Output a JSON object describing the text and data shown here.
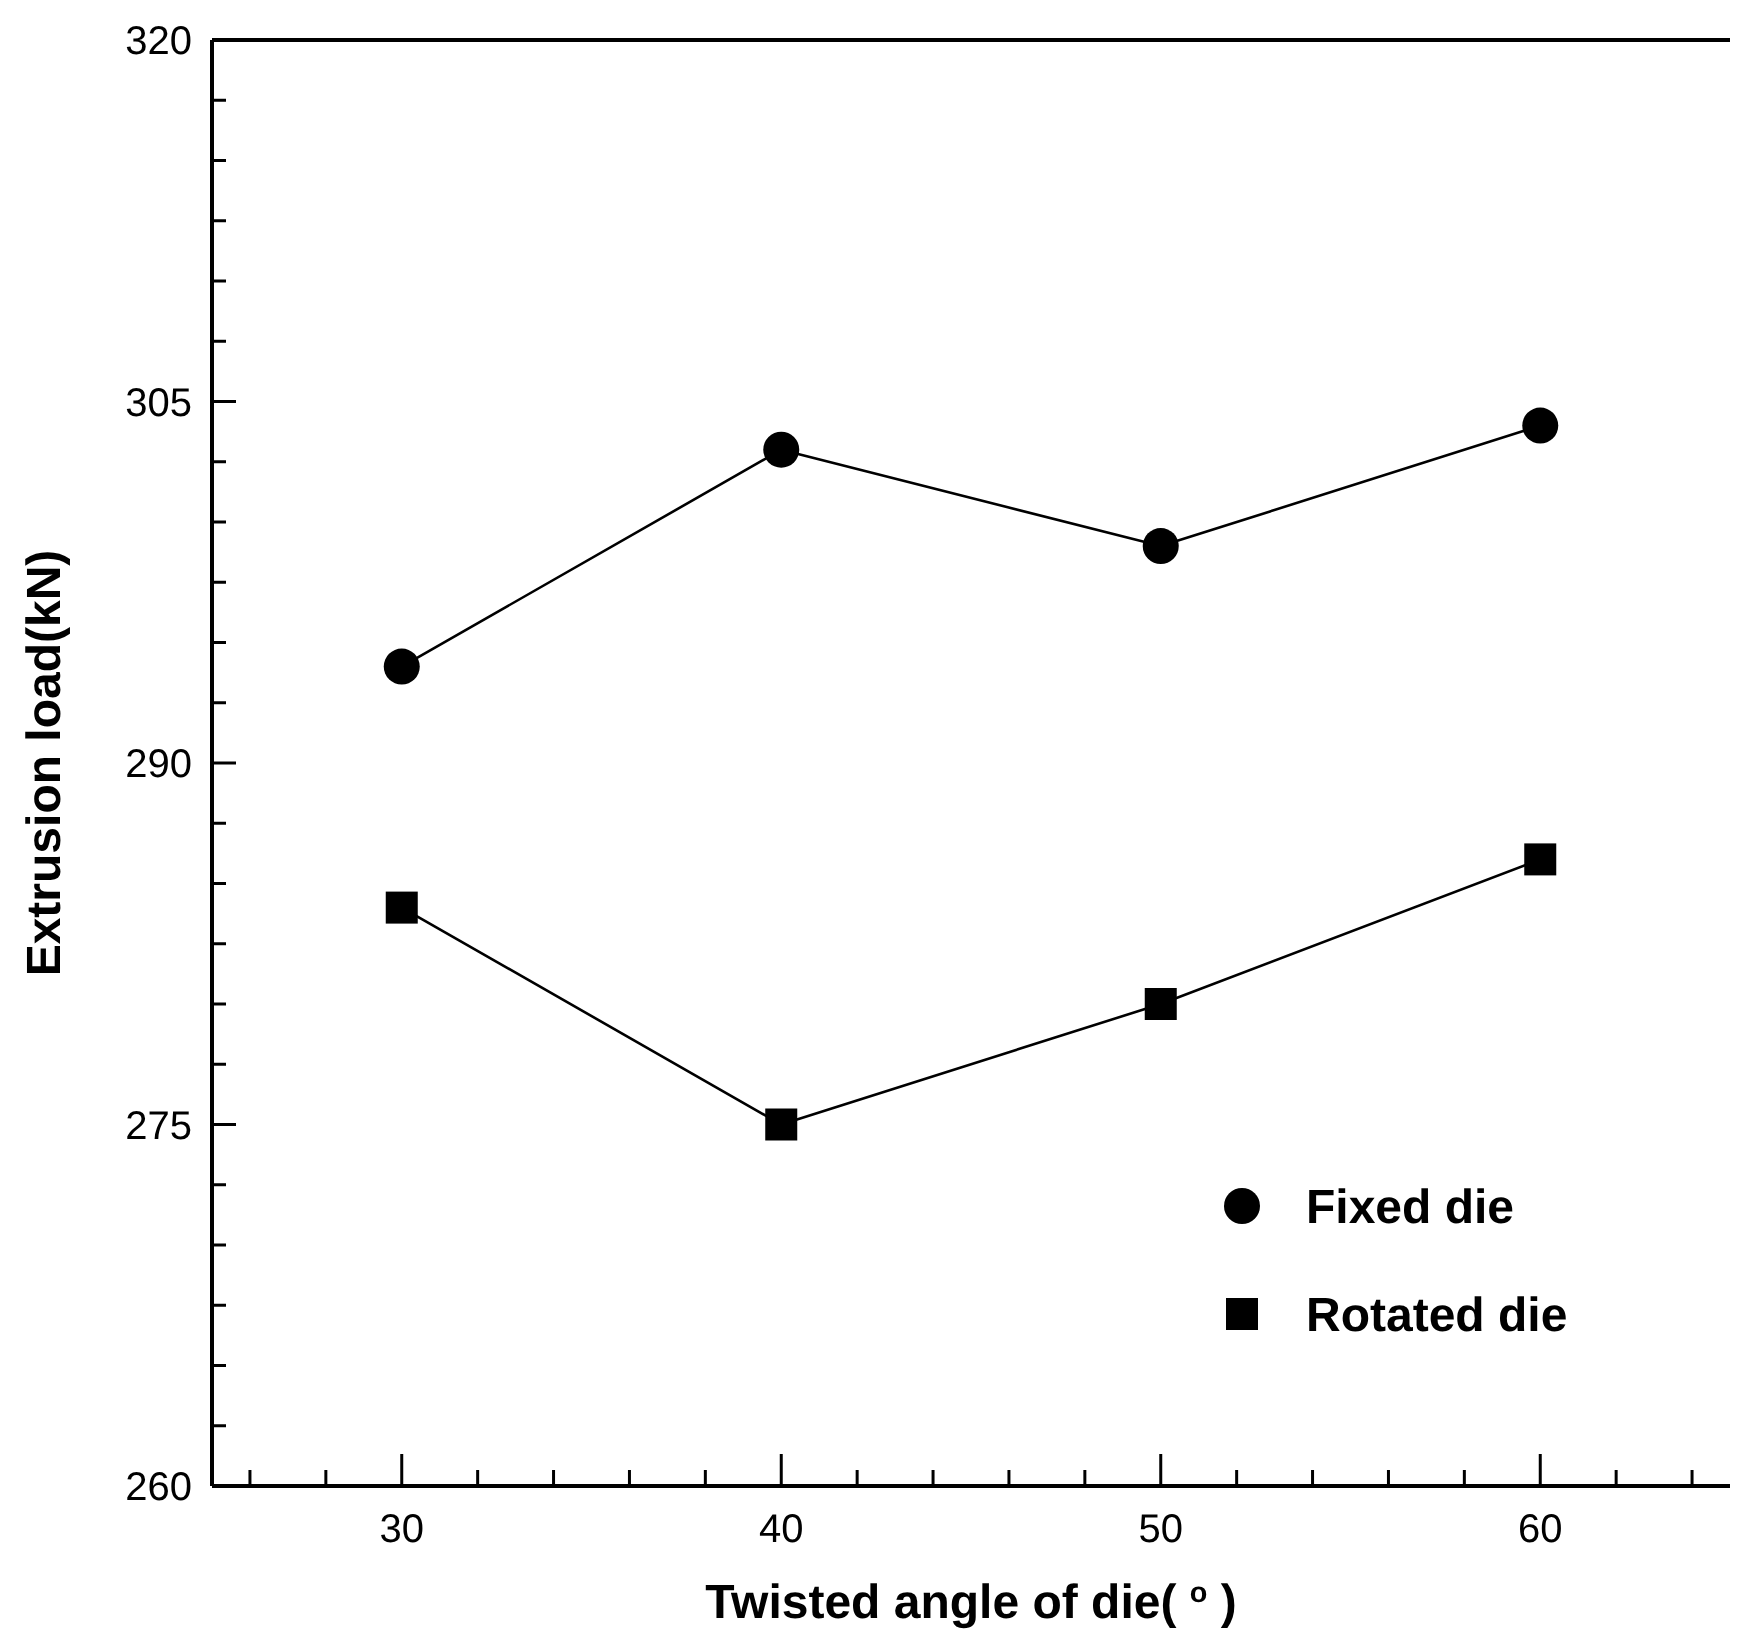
{
  "chart_data": {
    "type": "line",
    "xlabel": "Twisted angle of die( $^{o}$ )",
    "ylabel": "Extrusion load(kN)",
    "x": [
      30,
      40,
      50,
      60
    ],
    "series": [
      {
        "name": "Fixed die",
        "color": "#000000",
        "marker": "circle",
        "values": [
          294,
          303,
          299,
          304
        ]
      },
      {
        "name": "Rotated die",
        "color": "#000000",
        "marker": "square",
        "values": [
          284,
          275,
          280,
          286
        ]
      }
    ],
    "xlim": [
      25,
      65
    ],
    "ylim": [
      260,
      320
    ],
    "xticks": [
      {
        "value": 26,
        "label": null
      },
      {
        "value": 28,
        "label": null
      },
      30,
      {
        "value": 32,
        "label": null
      },
      {
        "value": 34,
        "label": null
      },
      {
        "value": 36,
        "label": null
      },
      {
        "value": 38,
        "label": null
      },
      40,
      {
        "value": 42,
        "label": null
      },
      {
        "value": 44,
        "label": null
      },
      {
        "value": 46,
        "label": null
      },
      {
        "value": 48,
        "label": null
      },
      50,
      {
        "value": 52,
        "label": null
      },
      {
        "value": 54,
        "label": null
      },
      {
        "value": 56,
        "label": null
      },
      {
        "value": 58,
        "label": null
      },
      60,
      {
        "value": 62,
        "label": null
      },
      {
        "value": 64,
        "label": null
      }
    ],
    "yticks": [
      260,
      {
        "value": 262.5,
        "label": null
      },
      {
        "value": 265,
        "label": null
      },
      {
        "value": 267.5,
        "label": null
      },
      {
        "value": 270,
        "label": null
      },
      {
        "value": 272.5,
        "label": null
      },
      275,
      {
        "value": 277.5,
        "label": null
      },
      {
        "value": 280,
        "label": null
      },
      {
        "value": 282.5,
        "label": null
      },
      {
        "value": 285,
        "label": null
      },
      {
        "value": 287.5,
        "label": null
      },
      290,
      {
        "value": 292.5,
        "label": null
      },
      {
        "value": 295,
        "label": null
      },
      {
        "value": 297.5,
        "label": null
      },
      {
        "value": 300,
        "label": null
      },
      {
        "value": 302.5,
        "label": null
      },
      305,
      {
        "value": 307.5,
        "label": null
      },
      {
        "value": 310,
        "label": null
      },
      {
        "value": 312.5,
        "label": null
      },
      {
        "value": 315,
        "label": null
      },
      {
        "value": 317.5,
        "label": null
      },
      320
    ],
    "legend": "bottom right",
    "grid": false
  }
}
